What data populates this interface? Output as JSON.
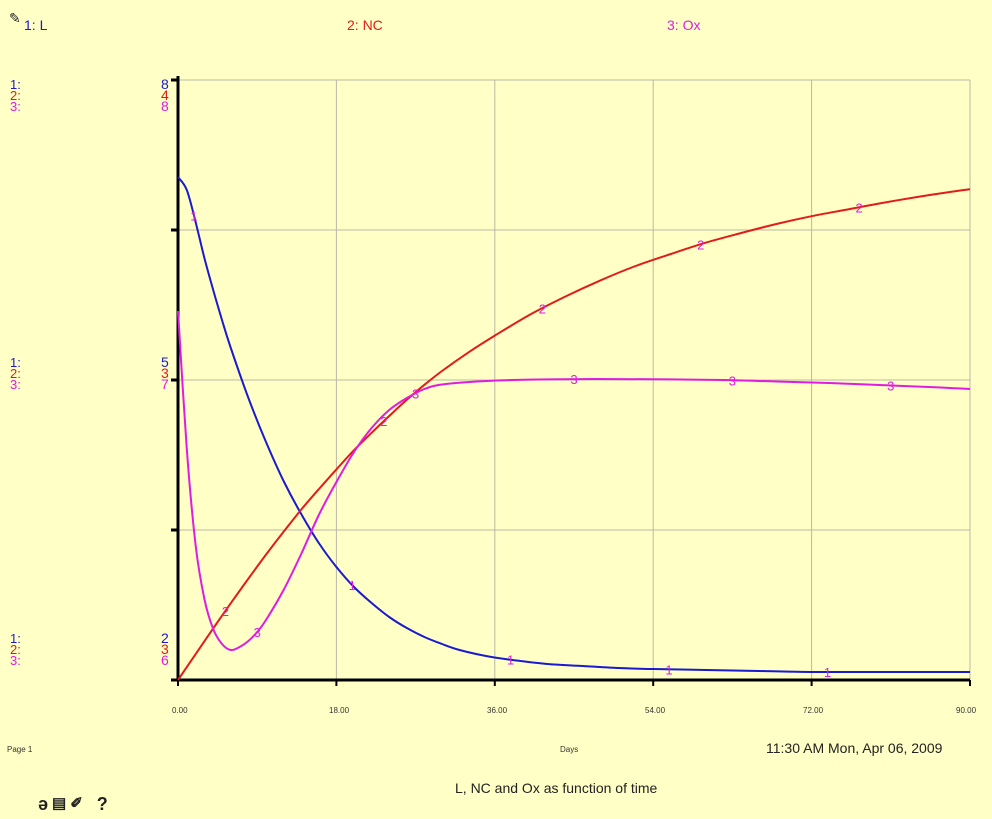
{
  "legend": [
    {
      "label": "1: L",
      "color": "#1a1ad0"
    },
    {
      "label": "2: NC",
      "color": "#e21b1b"
    },
    {
      "label": "3: Ox",
      "color": "#e01ce0"
    }
  ],
  "pin_icon": "pin-icon",
  "axis_scale_labels": {
    "top": {
      "l1": "1:",
      "l2": "2:",
      "l3": "3:",
      "v1": "8",
      "v2": "4",
      "v3": "8"
    },
    "middle": {
      "l1": "1:",
      "l2": "2:",
      "l3": "3:",
      "v1": "5",
      "v2": "3",
      "v3": "7"
    },
    "bottom": {
      "l1": "1:",
      "l2": "2:",
      "l3": "3:",
      "v1": "2",
      "v2": "3",
      "v3": "6"
    }
  },
  "footer": {
    "page": "Page 1",
    "xlabel": "Days",
    "timestamp": "11:30 AM  Mon, Apr 06, 2009",
    "title": "L, NC and Ox as function of time"
  },
  "toolbar": {
    "lock": "ә",
    "print": "▤",
    "edit": "✐",
    "help": "?"
  },
  "chart_data": {
    "type": "line",
    "title": "L, NC and Ox as function of time",
    "xlabel": "Days",
    "xlim": [
      0,
      90
    ],
    "x_ticks": [
      "0.00",
      "18.00",
      "36.00",
      "54.00",
      "72.00",
      "90.00"
    ],
    "grid": true,
    "series": [
      {
        "name": "L",
        "marker": "1",
        "color": "#1a1ad0",
        "ylim": [
          2,
          8
        ],
        "x": [
          0,
          1,
          2,
          3,
          4,
          5,
          6,
          8,
          10,
          12,
          14,
          16,
          18,
          20,
          22,
          24,
          26,
          28,
          30,
          32,
          35,
          38,
          42,
          46,
          50,
          54,
          60,
          66,
          72,
          80,
          90
        ],
        "y": [
          7.03,
          6.9,
          6.58,
          6.22,
          5.9,
          5.6,
          5.32,
          4.82,
          4.38,
          3.99,
          3.66,
          3.37,
          3.13,
          2.93,
          2.77,
          2.63,
          2.52,
          2.43,
          2.36,
          2.3,
          2.24,
          2.2,
          2.16,
          2.14,
          2.12,
          2.11,
          2.1,
          2.09,
          2.08,
          2.08,
          2.08
        ]
      },
      {
        "name": "NC",
        "marker": "2",
        "color": "#e21b1b",
        "ylim": [
          3,
          4
        ],
        "x": [
          0,
          2,
          4,
          6,
          8,
          10,
          12,
          14,
          16,
          18,
          20,
          22,
          24,
          26,
          28,
          30,
          33,
          36,
          40,
          44,
          48,
          52,
          56,
          60,
          64,
          68,
          72,
          76,
          80,
          84,
          88,
          90
        ],
        "y": [
          3.0,
          3.043,
          3.086,
          3.128,
          3.169,
          3.209,
          3.247,
          3.284,
          3.318,
          3.351,
          3.383,
          3.412,
          3.44,
          3.467,
          3.492,
          3.515,
          3.546,
          3.574,
          3.609,
          3.639,
          3.666,
          3.69,
          3.71,
          3.729,
          3.745,
          3.76,
          3.773,
          3.784,
          3.795,
          3.805,
          3.814,
          3.818
        ]
      },
      {
        "name": "Ox",
        "marker": "3",
        "color": "#e01ce0",
        "ylim": [
          6,
          8
        ],
        "x": [
          0,
          1,
          2,
          3,
          4,
          5,
          6,
          7,
          8,
          9,
          10,
          12,
          14,
          16,
          18,
          20,
          22,
          24,
          26,
          28,
          30,
          34,
          38,
          42,
          46,
          50,
          56,
          62,
          68,
          74,
          80,
          86,
          90
        ],
        "y": [
          7.23,
          6.77,
          6.45,
          6.27,
          6.17,
          6.12,
          6.1,
          6.11,
          6.13,
          6.16,
          6.2,
          6.3,
          6.42,
          6.55,
          6.66,
          6.76,
          6.84,
          6.9,
          6.94,
          6.97,
          6.985,
          6.995,
          7.0,
          7.002,
          7.003,
          7.003,
          7.002,
          7.0,
          6.995,
          6.99,
          6.983,
          6.976,
          6.97
        ]
      }
    ]
  }
}
